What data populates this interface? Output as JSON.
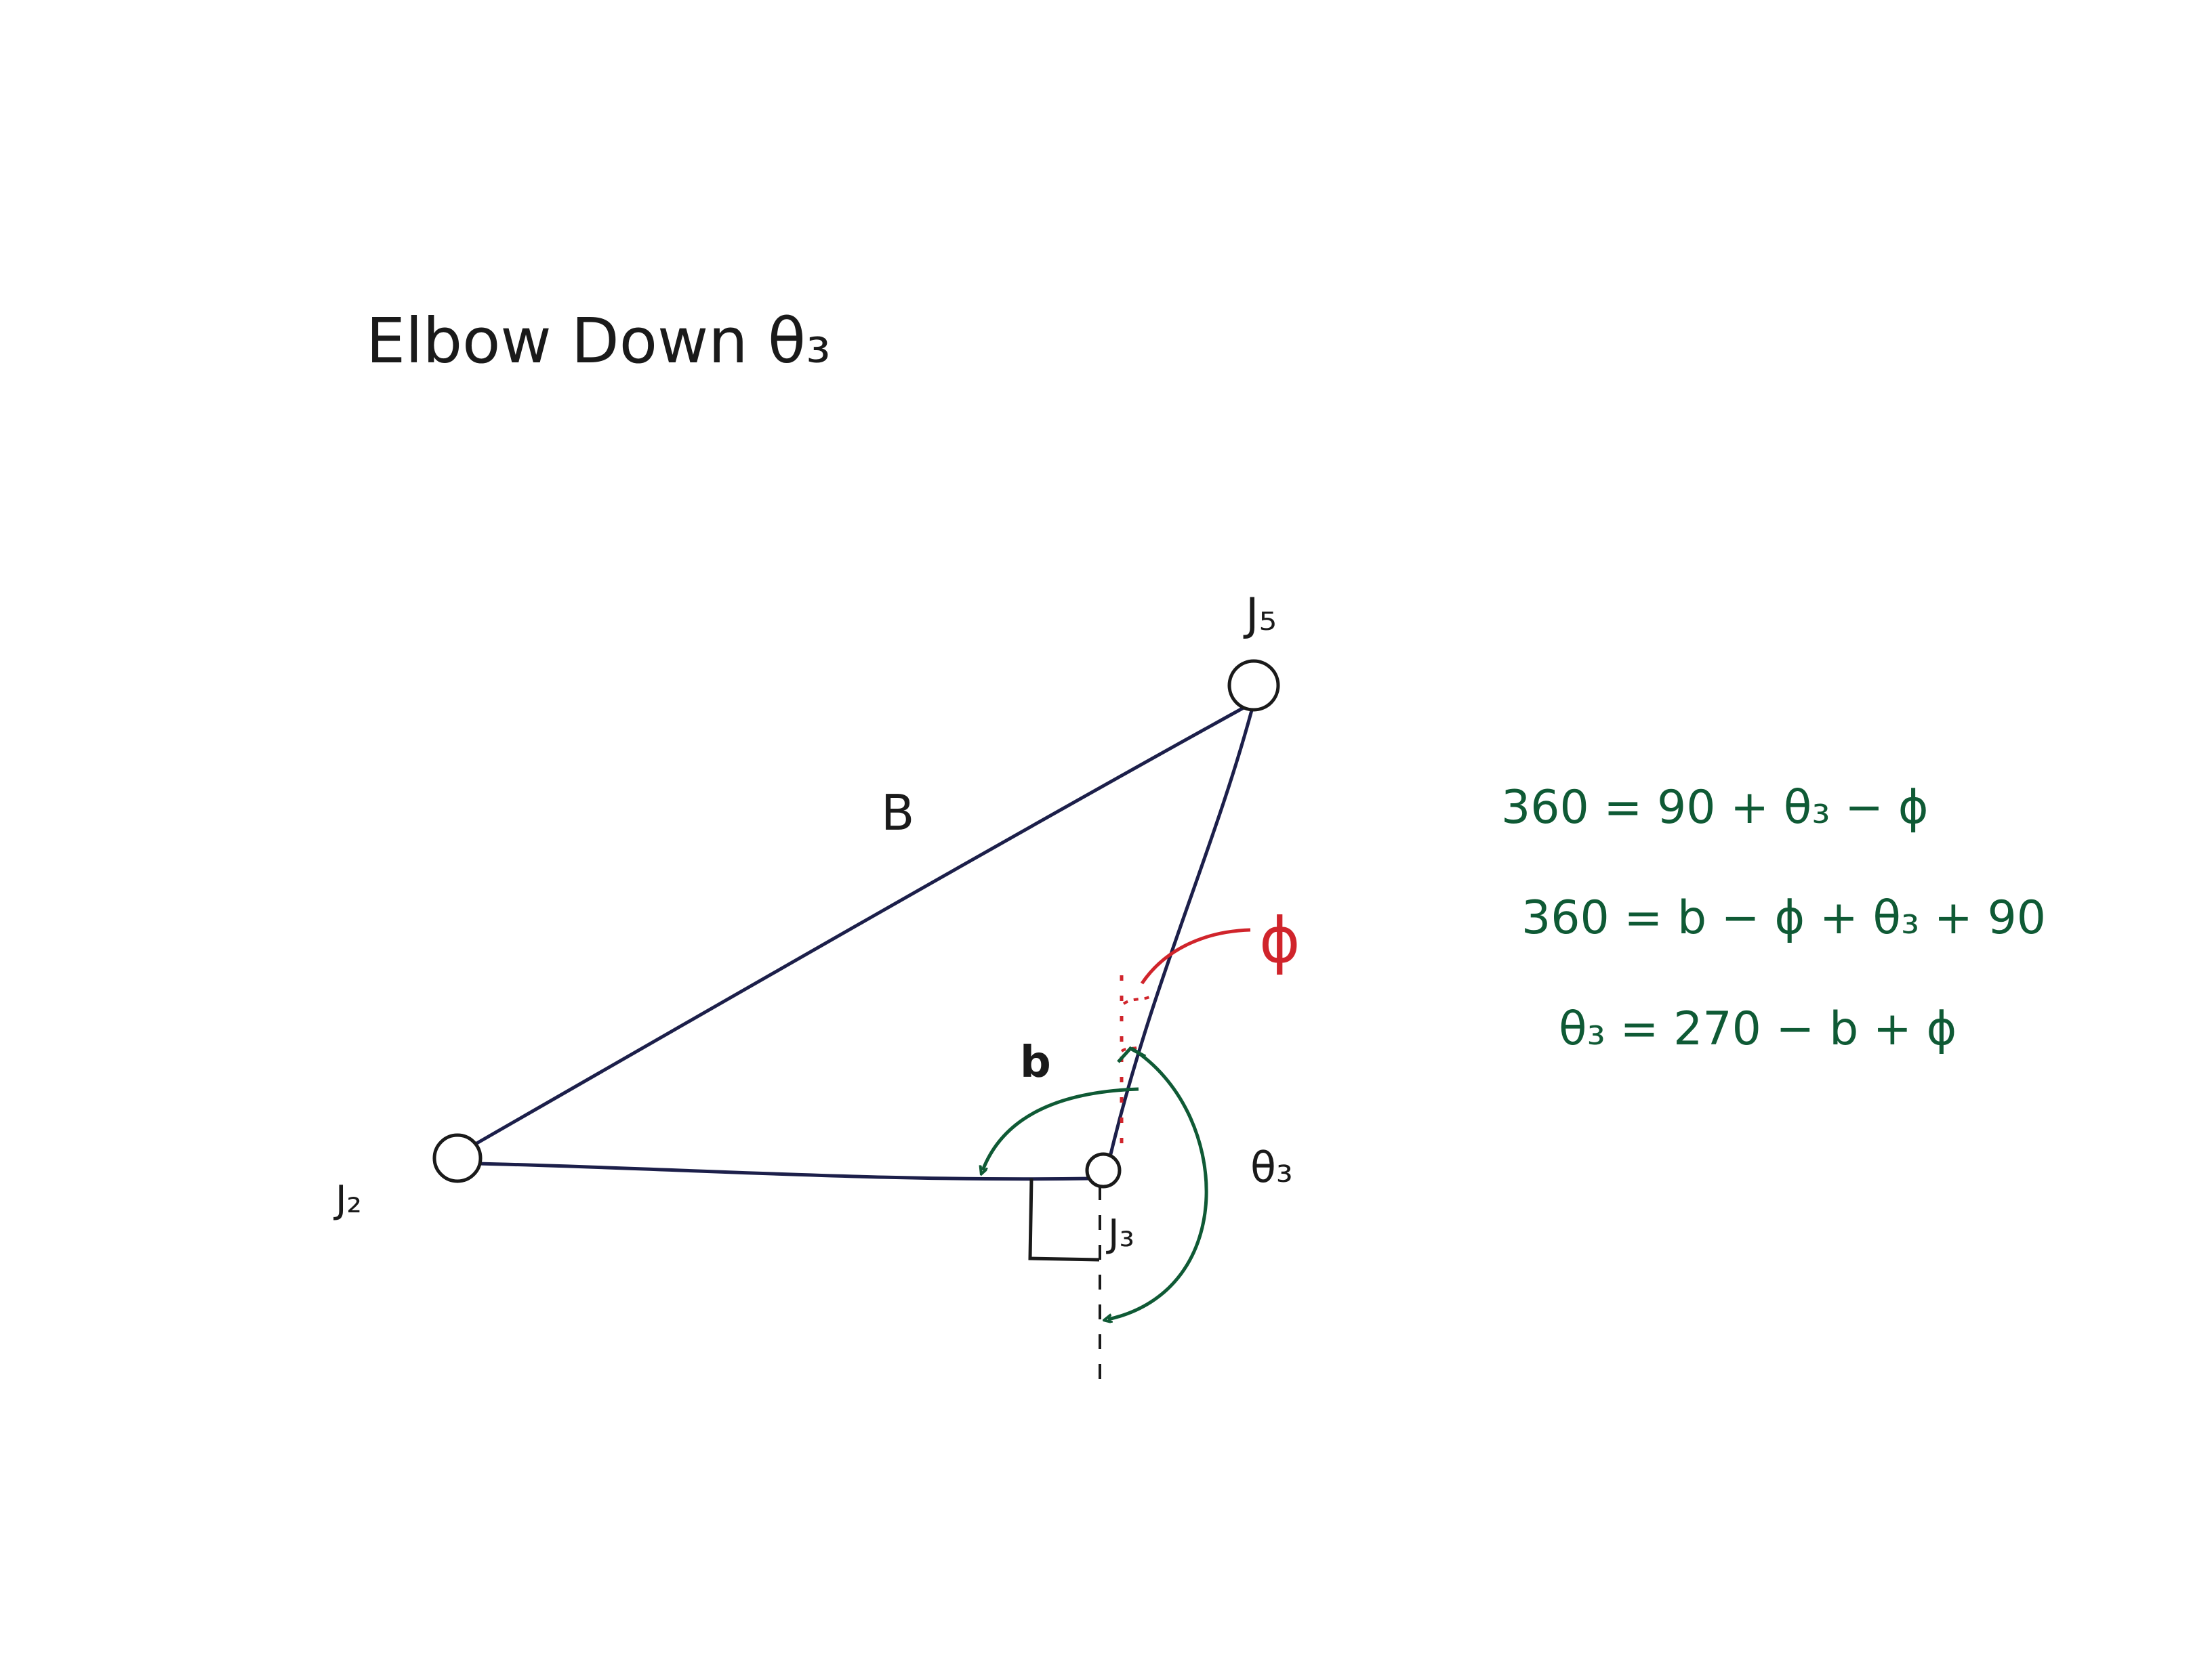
{
  "title": "Elbow Down θ₃",
  "colors": {
    "black_ink": "#1a1a1a",
    "link_ink": "#1c1f4a",
    "green_ink": "#0f5a35",
    "red_ink": "#d0242b"
  },
  "joints": {
    "j2": "J₂",
    "j3": "J₃",
    "j5": "J₅"
  },
  "labels": {
    "side_B": "B",
    "angle_b": "b",
    "angle_phi": "ϕ",
    "angle_theta3": "θ₃"
  },
  "equations": [
    "360 = 90 + θ₃ − ϕ",
    "360 = b − ϕ + θ₃ + 90",
    "θ₃ = 270 − b + ϕ"
  ]
}
